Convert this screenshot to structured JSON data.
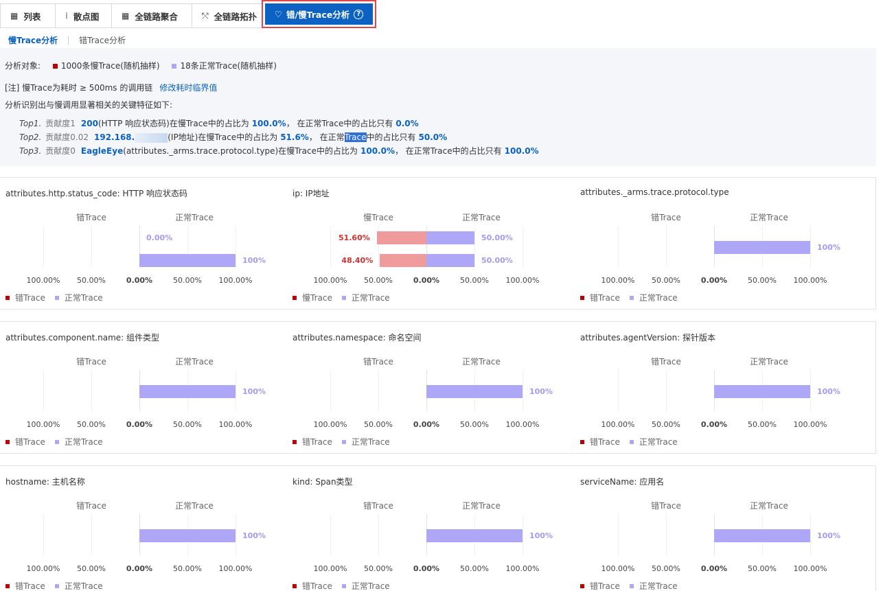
{
  "tabs": [
    {
      "icon": "▦",
      "label": "列表"
    },
    {
      "icon": "⁞",
      "label": "散点图"
    },
    {
      "icon": "▦",
      "label": "全链路聚合"
    },
    {
      "icon": "⤲",
      "label": "全链路拓扑"
    }
  ],
  "active_tab": {
    "icon": "♡",
    "label": "错/慢Trace分析",
    "help": "?"
  },
  "subtabs": {
    "active": "慢Trace分析",
    "other": "错Trace分析"
  },
  "summary": {
    "target_label": "分析对象:",
    "slow_sample": "1000条慢Trace(随机抽样)",
    "normal_sample": "18条正常Trace(随机抽样)",
    "note": "[注] 慢Trace为耗时 ≥ 500ms 的调用链",
    "note_link": "修改耗时临界值",
    "intro": "分析识别出与慢调用显著相关的关键特征如下:",
    "tops": [
      {
        "idx": "Top1.",
        "contrib": "贡献度1",
        "value": "200",
        "desc": "(HTTP 响应状态码)在慢Trace中的占比为",
        "slow_pct": "100.0%",
        "mid": "， 在正常Trace中的占比只有",
        "normal_pct": "0.0%"
      },
      {
        "idx": "Top2.",
        "contrib": "贡献度0.02",
        "value": "192.168.",
        "desc": "(IP地址)在慢Trace中的占比为",
        "slow_pct": "51.6%",
        "mid_pre": "， 在正常",
        "mid_hl": "Trace",
        "mid_post": "中的占比只有",
        "normal_pct": "50.0%"
      },
      {
        "idx": "Top3.",
        "contrib": "贡献度0",
        "value": "EagleEye",
        "desc": "(attributes._arms.trace.protocol.type)在慢Trace中的占比为",
        "slow_pct": "100.0%",
        "mid": "， 在正常Trace中的占比只有",
        "normal_pct": "100.0%"
      }
    ]
  },
  "colors": {
    "slow": "#c00000",
    "normal": "#aea6f6",
    "slow_bar": "#ef9b9b",
    "accent": "#0b62c3"
  },
  "ticks": [
    "100.00%",
    "50.00%",
    "0.00%",
    "50.00%",
    "100.00%"
  ],
  "charts": [
    {
      "title": "attributes.http.status_code: HTTP 响应状态码",
      "left_head": "错Trace",
      "right_head": "正常Trace",
      "legend_left": "错Trace",
      "legend_right": "正常Trace",
      "rows": [
        {
          "slow": 0,
          "normal": 0,
          "normal_label": "0.00%"
        },
        {
          "slow": 0,
          "normal": 1.0,
          "normal_label": "100%"
        }
      ]
    },
    {
      "title": "ip: IP地址",
      "left_head": "慢Trace",
      "right_head": "正常Trace",
      "legend_left": "慢Trace",
      "legend_right": "正常Trace",
      "rows": [
        {
          "slow": 0.516,
          "slow_label": "51.60%",
          "normal": 0.5,
          "normal_label": "50.00%"
        },
        {
          "slow": 0.484,
          "slow_label": "48.40%",
          "normal": 0.5,
          "normal_label": "50.00%"
        }
      ]
    },
    {
      "title": "attributes._arms.trace.protocol.type",
      "left_head": "错Trace",
      "right_head": "正常Trace",
      "legend_left": "错Trace",
      "legend_right": "正常Trace",
      "rows": [
        {
          "slow": 0,
          "normal": 1.0,
          "normal_label": "100%"
        }
      ]
    },
    {
      "title": "attributes.component.name: 组件类型",
      "left_head": "错Trace",
      "right_head": "正常Trace",
      "legend_left": "错Trace",
      "legend_right": "正常Trace",
      "rows": [
        {
          "slow": 0,
          "normal": 1.0,
          "normal_label": "100%"
        }
      ]
    },
    {
      "title": "attributes.namespace: 命名空间",
      "left_head": "错Trace",
      "right_head": "正常Trace",
      "legend_left": "错Trace",
      "legend_right": "正常Trace",
      "rows": [
        {
          "slow": 0,
          "normal": 1.0,
          "normal_label": "100%"
        }
      ]
    },
    {
      "title": "attributes.agentVersion: 探针版本",
      "left_head": "错Trace",
      "right_head": "正常Trace",
      "legend_left": "错Trace",
      "legend_right": "正常Trace",
      "rows": [
        {
          "slow": 0,
          "normal": 1.0,
          "normal_label": "100%"
        }
      ]
    },
    {
      "title": "hostname: 主机名称",
      "left_head": "错Trace",
      "right_head": "正常Trace",
      "legend_left": "错Trace",
      "legend_right": "正常Trace",
      "rows": [
        {
          "slow": 0,
          "normal": 1.0,
          "normal_label": "100%"
        }
      ]
    },
    {
      "title": "kind: Span类型",
      "left_head": "错Trace",
      "right_head": "正常Trace",
      "legend_left": "错Trace",
      "legend_right": "正常Trace",
      "rows": [
        {
          "slow": 0,
          "normal": 1.0,
          "normal_label": "100%"
        }
      ]
    },
    {
      "title": "serviceName: 应用名",
      "left_head": "错Trace",
      "right_head": "正常Trace",
      "legend_left": "错Trace",
      "legend_right": "正常Trace",
      "rows": [
        {
          "slow": 0,
          "normal": 1.0,
          "normal_label": "100%"
        }
      ]
    }
  ]
}
